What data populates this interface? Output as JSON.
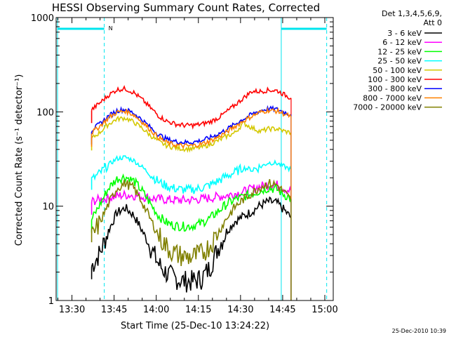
{
  "chart_data": {
    "type": "line",
    "title": "HESSI Observing Summary Count Rates, Corrected",
    "xlabel": "Start Time (25-Dec-10 13:24:22)",
    "ylabel": "Corrected Count Rate (s⁻¹ detector⁻¹)",
    "yscale": "log",
    "ylim": [
      1,
      1000
    ],
    "xlim": [
      "13:24:22",
      "15:03:00"
    ],
    "x_ticks": [
      "13:30",
      "13:45",
      "14:00",
      "14:15",
      "14:30",
      "14:45",
      "15:00"
    ],
    "y_ticks": [
      "1",
      "10",
      "100",
      "1000"
    ],
    "legend_header": [
      "Det 1,3,4,5,6,9,",
      "Att 0"
    ],
    "legend_position": "right, outside plot",
    "flag_label": "N",
    "timestamp": "25-Dec-2010 10:39",
    "night_markers": [
      "13:41:30",
      "14:44:30",
      "15:00:40"
    ],
    "series": [
      {
        "name": "3 - 6 keV",
        "color": "#000000",
        "x": [
          "13:37",
          "13:40",
          "13:43",
          "13:46",
          "13:49",
          "13:52",
          "13:55",
          "13:58",
          "14:01",
          "14:04",
          "14:07",
          "14:10",
          "14:13",
          "14:16",
          "14:19",
          "14:22",
          "14:25",
          "14:28",
          "14:31",
          "14:34",
          "14:37",
          "14:40",
          "14:43",
          "14:46",
          "14:48"
        ],
        "values": [
          2.3,
          3.2,
          5.5,
          8.5,
          9.6,
          8.0,
          5.5,
          3.6,
          2.4,
          1.9,
          1.7,
          1.6,
          1.6,
          1.7,
          2.2,
          3.6,
          5.4,
          6.9,
          7.8,
          8.8,
          10.2,
          11.2,
          10.8,
          8.8,
          7.5
        ]
      },
      {
        "name": "6 - 12 keV",
        "color": "#ff00ff",
        "x": [
          "13:37",
          "13:40",
          "13:43",
          "13:46",
          "13:49",
          "13:52",
          "13:55",
          "13:58",
          "14:01",
          "14:04",
          "14:07",
          "14:10",
          "14:13",
          "14:16",
          "14:19",
          "14:22",
          "14:25",
          "14:28",
          "14:31",
          "14:34",
          "14:37",
          "14:40",
          "14:43",
          "14:46",
          "14:48"
        ],
        "values": [
          11.2,
          11.8,
          12.2,
          12.8,
          13.2,
          13.0,
          12.6,
          12.2,
          11.9,
          11.7,
          11.6,
          11.6,
          11.7,
          11.9,
          12.2,
          12.6,
          13.0,
          13.6,
          14.2,
          15.2,
          16.2,
          17.0,
          16.8,
          15.2,
          14.5
        ]
      },
      {
        "name": "12 - 25 keV",
        "color": "#00ff00",
        "x": [
          "13:37",
          "13:40",
          "13:43",
          "13:46",
          "13:49",
          "13:52",
          "13:55",
          "13:58",
          "14:01",
          "14:04",
          "14:07",
          "14:10",
          "14:13",
          "14:16",
          "14:19",
          "14:22",
          "14:25",
          "14:28",
          "14:31",
          "14:34",
          "14:37",
          "14:40",
          "14:43",
          "14:46",
          "14:48"
        ],
        "values": [
          7.2,
          10.5,
          15.5,
          19.5,
          20.5,
          18.5,
          14.5,
          10.5,
          7.8,
          6.6,
          6.2,
          6.1,
          6.2,
          6.6,
          7.4,
          8.8,
          10.5,
          11.8,
          12.6,
          13.5,
          14.6,
          15.6,
          15.0,
          13.0,
          12.0
        ]
      },
      {
        "name": "25 - 50 keV",
        "color": "#00ffff",
        "x": [
          "13:37",
          "13:40",
          "13:43",
          "13:46",
          "13:49",
          "13:52",
          "13:55",
          "13:58",
          "14:01",
          "14:04",
          "14:07",
          "14:10",
          "14:13",
          "14:16",
          "14:19",
          "14:22",
          "14:25",
          "14:28",
          "14:31",
          "14:34",
          "14:37",
          "14:40",
          "14:43",
          "14:46",
          "14:48"
        ],
        "values": [
          19.0,
          22.5,
          27.5,
          32.0,
          33.0,
          30.5,
          26.0,
          21.5,
          18.0,
          16.2,
          15.3,
          14.9,
          15.0,
          15.6,
          16.7,
          18.5,
          20.8,
          22.8,
          25.5,
          24.5,
          26.0,
          29.0,
          28.5,
          26.0,
          24.5
        ]
      },
      {
        "name": "50 - 100 keV",
        "color": "#d4c800",
        "x": [
          "13:37",
          "13:40",
          "13:43",
          "13:46",
          "13:49",
          "13:52",
          "13:55",
          "13:58",
          "14:01",
          "14:04",
          "14:07",
          "14:10",
          "14:13",
          "14:16",
          "14:19",
          "14:22",
          "14:25",
          "14:28",
          "14:31",
          "14:34",
          "14:37",
          "14:40",
          "14:43",
          "14:46",
          "14:48"
        ],
        "values": [
          52,
          61,
          74,
          84,
          86,
          78,
          67,
          56,
          48,
          43.5,
          41.5,
          40.5,
          40.8,
          42.0,
          45.0,
          49.5,
          55.0,
          60.0,
          76.0,
          68.0,
          62.0,
          66.0,
          66.0,
          62.0,
          60.0
        ]
      },
      {
        "name": "100 - 300 keV",
        "color": "#ff0000",
        "x": [
          "13:37",
          "13:40",
          "13:43",
          "13:46",
          "13:49",
          "13:52",
          "13:55",
          "13:58",
          "14:01",
          "14:04",
          "14:07",
          "14:10",
          "14:13",
          "14:16",
          "14:19",
          "14:22",
          "14:25",
          "14:28",
          "14:31",
          "14:34",
          "14:37",
          "14:40",
          "14:43",
          "14:46",
          "14:48"
        ],
        "values": [
          105,
          125,
          150,
          172,
          176,
          160,
          135,
          110,
          90,
          79,
          74,
          72,
          72,
          74,
          78,
          86,
          100,
          118,
          140,
          165,
          165,
          170,
          168,
          150,
          140
        ]
      },
      {
        "name": "300 - 800 keV",
        "color": "#0000ff",
        "x": [
          "13:37",
          "13:40",
          "13:43",
          "13:46",
          "13:49",
          "13:52",
          "13:55",
          "13:58",
          "14:01",
          "14:04",
          "14:07",
          "14:10",
          "14:13",
          "14:16",
          "14:19",
          "14:22",
          "14:25",
          "14:28",
          "14:31",
          "14:34",
          "14:37",
          "14:40",
          "14:43",
          "14:46",
          "14:48"
        ],
        "values": [
          64,
          75,
          90,
          103,
          106,
          97,
          82,
          68,
          57,
          51,
          48.5,
          47.5,
          47.8,
          49.5,
          53.0,
          58.0,
          65.0,
          74.0,
          84.0,
          94.0,
          103,
          108,
          106,
          98,
          93
        ]
      },
      {
        "name": "800 - 7000 keV",
        "color": "#ff8000",
        "x": [
          "13:37",
          "13:40",
          "13:43",
          "13:46",
          "13:49",
          "13:52",
          "13:55",
          "13:58",
          "14:01",
          "14:04",
          "14:07",
          "14:10",
          "14:13",
          "14:16",
          "14:19",
          "14:22",
          "14:25",
          "14:28",
          "14:31",
          "14:34",
          "14:37",
          "14:40",
          "14:43",
          "14:46",
          "14:48"
        ],
        "values": [
          60,
          71,
          86,
          99,
          102,
          93,
          78,
          64,
          53,
          47,
          44.5,
          43.5,
          43.8,
          45.5,
          49.0,
          54.0,
          61.0,
          70.0,
          80.0,
          90.0,
          99,
          104,
          102,
          94,
          89
        ]
      },
      {
        "name": "7000 - 20000 keV",
        "color": "#808000",
        "x": [
          "13:37",
          "13:40",
          "13:43",
          "13:46",
          "13:49",
          "13:52",
          "13:55",
          "13:58",
          "14:01",
          "14:04",
          "14:07",
          "14:10",
          "14:13",
          "14:16",
          "14:19",
          "14:22",
          "14:25",
          "14:28",
          "14:31",
          "14:34",
          "14:37",
          "14:40",
          "14:43",
          "14:46",
          "14:48"
        ],
        "values": [
          4.6,
          6.8,
          10.5,
          15.5,
          17.5,
          15.5,
          11.0,
          7.2,
          4.8,
          3.6,
          3.1,
          2.9,
          2.9,
          3.1,
          3.8,
          5.2,
          7.4,
          9.8,
          11.8,
          13.8,
          16.0,
          17.5,
          16.8,
          13.5,
          11.5
        ]
      }
    ]
  }
}
